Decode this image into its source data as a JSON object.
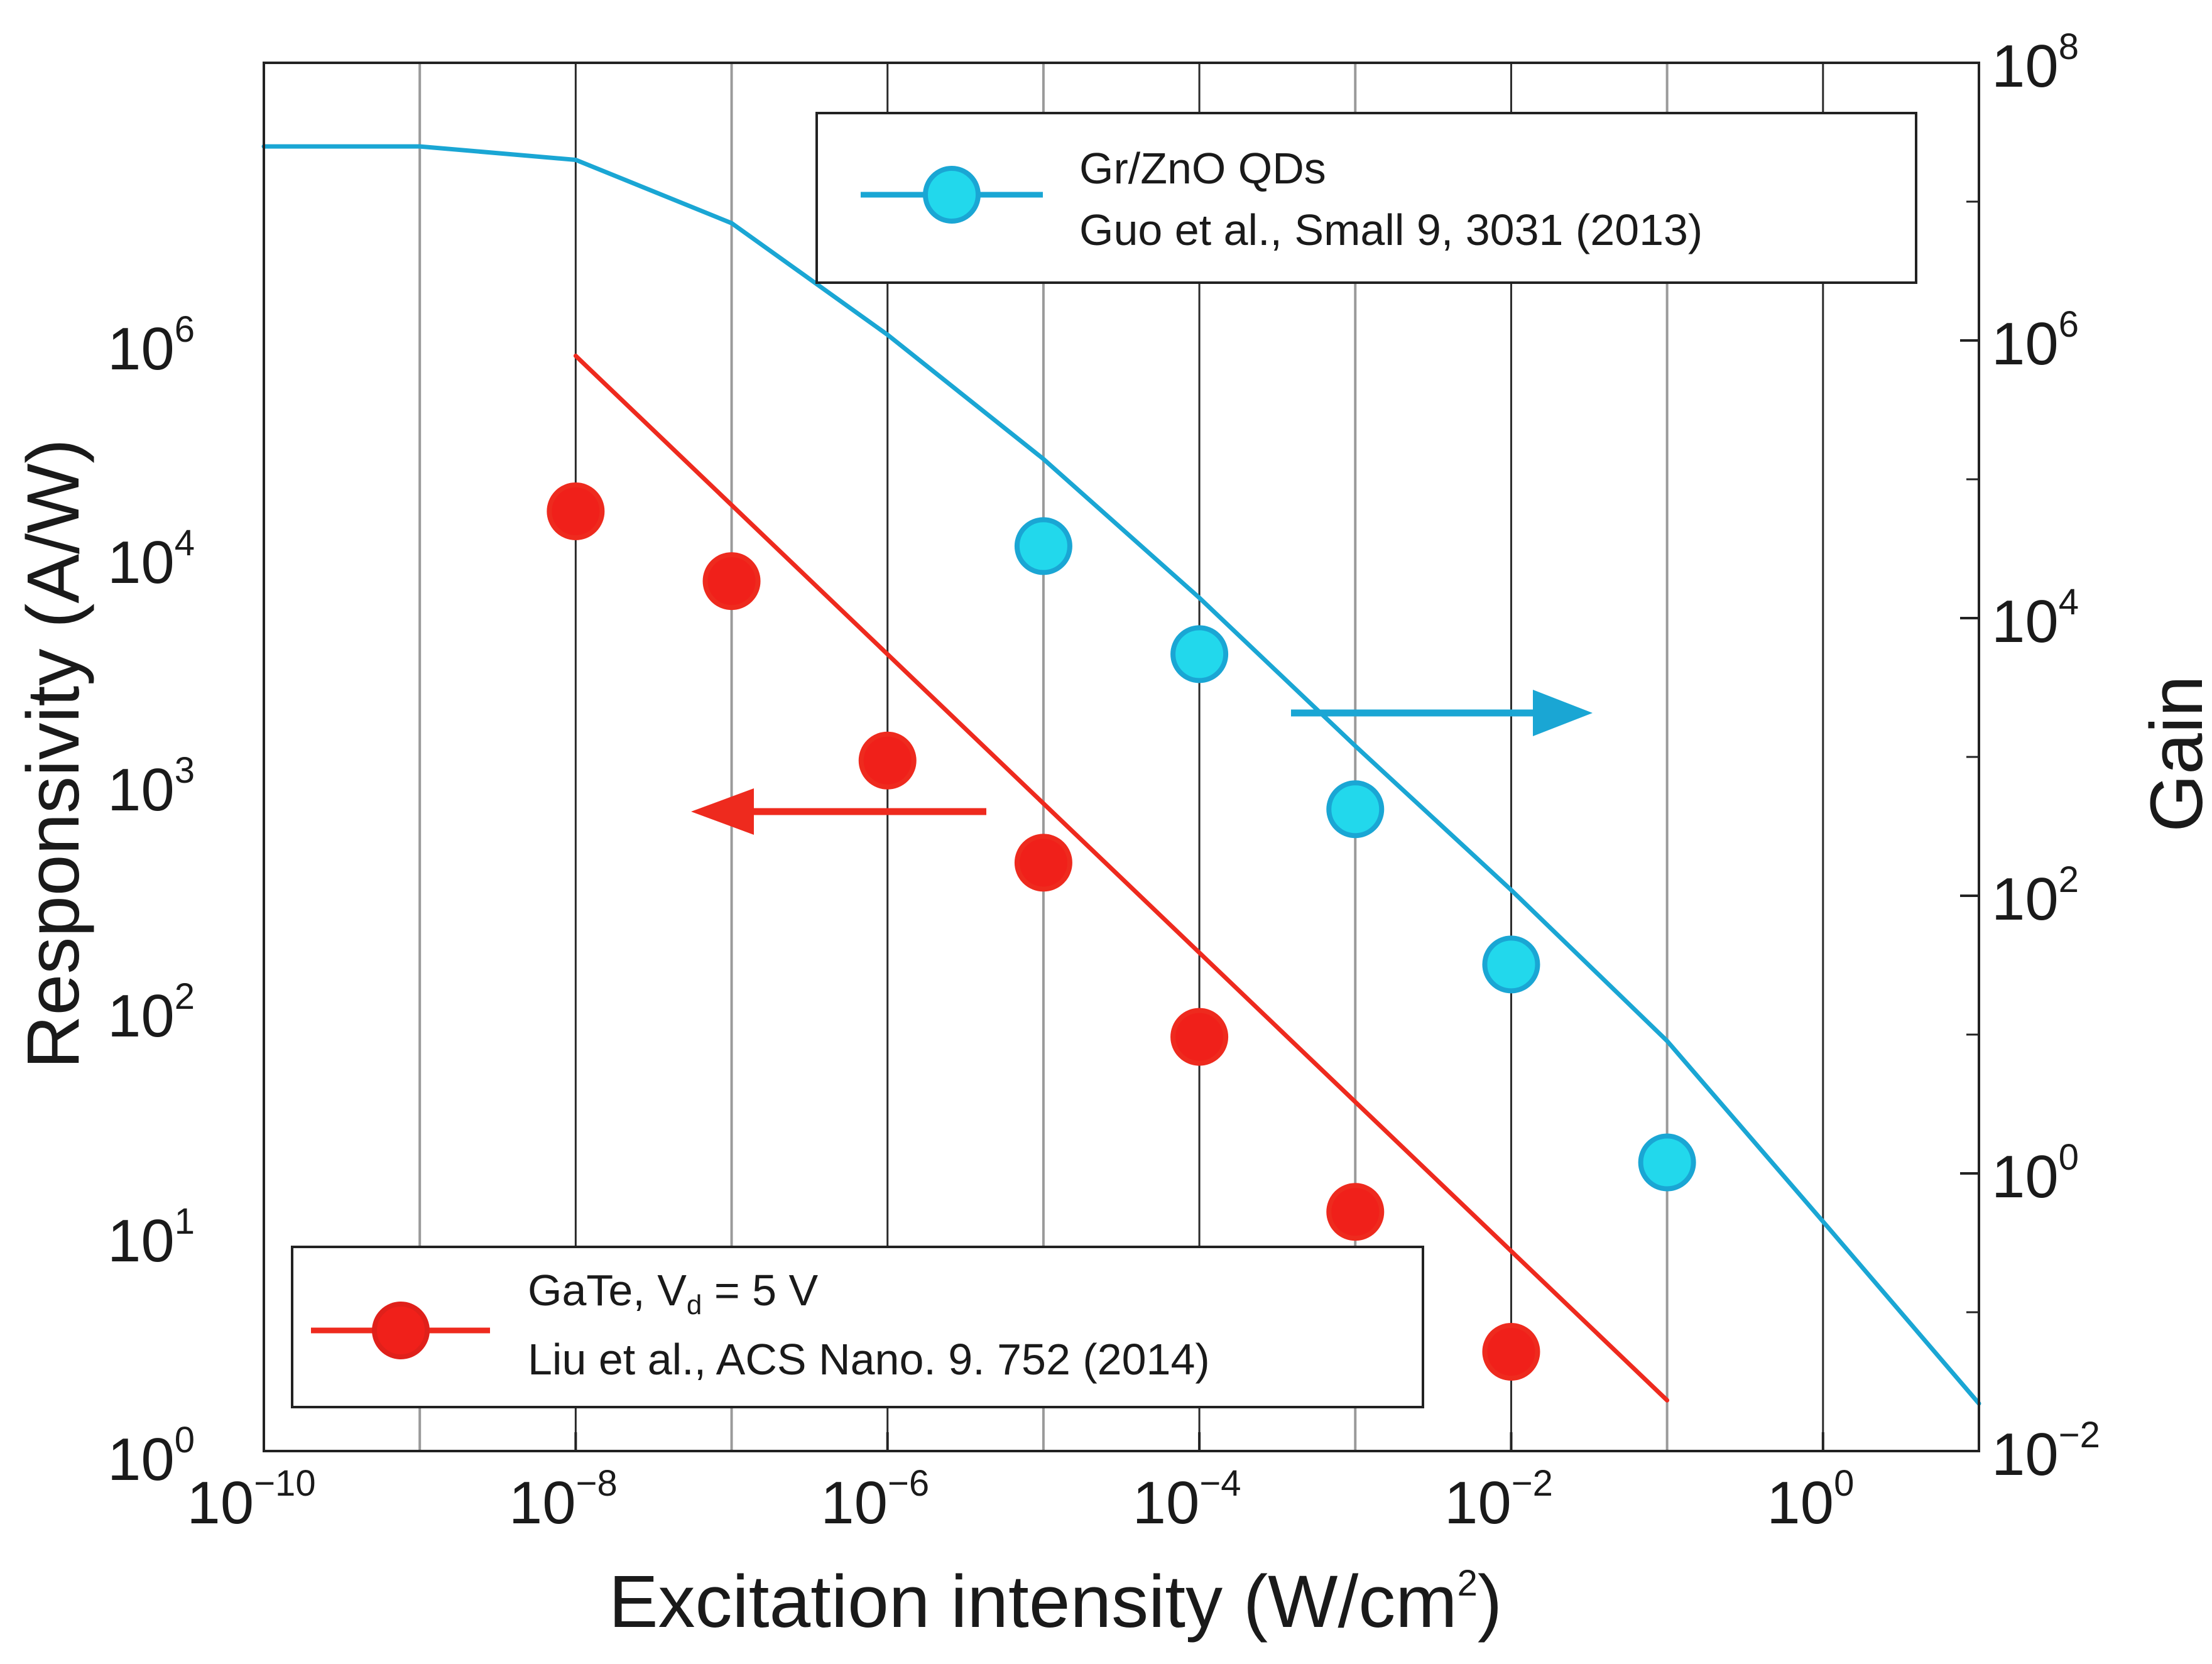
{
  "chart_data": {
    "type": "scatter",
    "title": "",
    "xlabel": "Excitation intensity (W/cm²)",
    "xlabel_main": "Excitation intensity (W/cm",
    "xlabel_sup": "2",
    "xlabel_tail": ")",
    "ylabel": "Responsivity (A/W)",
    "y2label": "Gain",
    "xscale": "log",
    "xlim": [
      1e-10,
      10
    ],
    "xgrid": [
      1e-09,
      1e-08,
      1e-07,
      1e-06,
      1e-05,
      0.0001,
      0.001,
      0.01,
      0.1,
      1
    ],
    "left_axis": {
      "note": "custom nonlinear scale; labels as printed",
      "ticks": [
        {
          "base": "10",
          "exp": "0",
          "value": 1
        },
        {
          "base": "10",
          "exp": "1",
          "value": 10
        },
        {
          "base": "10",
          "exp": "2",
          "value": 100
        },
        {
          "base": "10",
          "exp": "3",
          "value": 1000
        },
        {
          "base": "10",
          "exp": "4",
          "value": 10000
        },
        {
          "base": "10",
          "exp": "6",
          "value": 1000000
        }
      ]
    },
    "right_axis": {
      "scale": "log",
      "ylim": [
        0.01,
        100000000
      ],
      "ticks": [
        {
          "base": "10",
          "exp": "−2",
          "value": 0.01
        },
        {
          "base": "10",
          "exp": "0",
          "value": 1
        },
        {
          "base": "10",
          "exp": "2",
          "value": 100
        },
        {
          "base": "10",
          "exp": "4",
          "value": 10000
        },
        {
          "base": "10",
          "exp": "6",
          "value": 1000000
        },
        {
          "base": "10",
          "exp": "8",
          "value": 100000000
        }
      ]
    },
    "x_ticks": [
      {
        "base": "10",
        "exp": "−10",
        "value": 1e-10
      },
      {
        "base": "10",
        "exp": "−8",
        "value": 1e-08
      },
      {
        "base": "10",
        "exp": "−6",
        "value": 1e-06
      },
      {
        "base": "10",
        "exp": "−4",
        "value": 0.0001
      },
      {
        "base": "10",
        "exp": "−2",
        "value": 0.01
      },
      {
        "base": "10",
        "exp": "0",
        "value": 1
      }
    ],
    "series": [
      {
        "name": "Gr/ZnO QDs",
        "citation": "Guo et al., Small 9, 3031 (2013)",
        "axis": "right",
        "color": "#1aa6d4",
        "marker_fill": "#22d8ec",
        "points": [
          {
            "x": 1e-05,
            "y": 33000
          },
          {
            "x": 0.0001,
            "y": 5500
          },
          {
            "x": 0.001,
            "y": 420
          },
          {
            "x": 0.01,
            "y": 32
          },
          {
            "x": 0.1,
            "y": 1.2
          }
        ],
        "fit": [
          {
            "x": 1e-10,
            "y": 25000000
          },
          {
            "x": 1e-09,
            "y": 25000000
          },
          {
            "x": 1e-08,
            "y": 20000000
          },
          {
            "x": 1e-07,
            "y": 7000000
          },
          {
            "x": 1e-06,
            "y": 1100000
          },
          {
            "x": 1e-05,
            "y": 140000
          },
          {
            "x": 0.0001,
            "y": 14000
          },
          {
            "x": 0.001,
            "y": 1200
          },
          {
            "x": 0.01,
            "y": 110
          },
          {
            "x": 0.1,
            "y": 9
          },
          {
            "x": 1,
            "y": 0.45
          },
          {
            "x": 10,
            "y": 0.022
          }
        ]
      },
      {
        "name": "GaTe, V",
        "name_sub": "d",
        "name_tail": " = 5 V",
        "citation": "Liu et al., ACS Nano. 9. 752 (2014)",
        "axis": "left",
        "color": "#ee2a1e",
        "marker_fill": "#f0201a",
        "points": [
          {
            "x": 1e-08,
            "y": 28000
          },
          {
            "x": 1e-07,
            "y": 8000
          },
          {
            "x": 1e-06,
            "y": 1300
          },
          {
            "x": 1e-05,
            "y": 460
          },
          {
            "x": 0.0001,
            "y": 78
          },
          {
            "x": 0.001,
            "y": 13
          },
          {
            "x": 0.01,
            "y": 3
          }
        ],
        "fit": [
          {
            "x": 1e-08,
            "y": 800000
          },
          {
            "x": 0.1,
            "y": 1.8
          }
        ]
      }
    ],
    "annotations": [
      {
        "type": "arrow",
        "direction": "right",
        "meaning": "Gr/ZnO QDs uses right axis (Gain)",
        "color": "#1aa6d4"
      },
      {
        "type": "arrow",
        "direction": "left",
        "meaning": "GaTe uses left axis (Responsivity)",
        "color": "#ee2a1e"
      }
    ],
    "legends": [
      {
        "position": "top-right",
        "series": "Gr/ZnO QDs"
      },
      {
        "position": "bottom-left",
        "series": "GaTe"
      }
    ],
    "grid": "vertical only"
  }
}
